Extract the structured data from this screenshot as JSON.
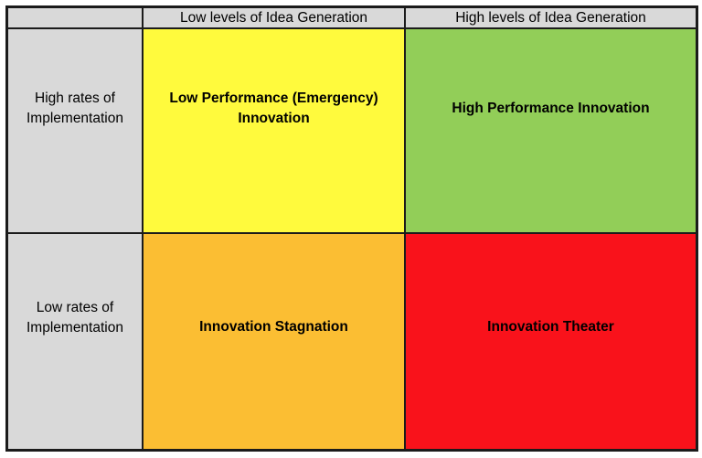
{
  "matrix": {
    "column_headers": [
      {
        "label": "Low levels of Idea Generation"
      },
      {
        "label": "High levels of Idea Generation"
      }
    ],
    "row_headers": [
      {
        "label": "High rates of\nImplementation"
      },
      {
        "label": "Low rates of\nImplementation"
      }
    ],
    "quadrants": [
      {
        "id": "low-performance-emergency-innovation",
        "label": "Low Performance (Emergency)\nInnovation",
        "color": "#fffa3d"
      },
      {
        "id": "high-performance-innovation",
        "label": "High Performance Innovation",
        "color": "#92ce58"
      },
      {
        "id": "innovation-stagnation",
        "label": "Innovation Stagnation",
        "color": "#fbbe33"
      },
      {
        "id": "innovation-theater",
        "label": "Innovation Theater",
        "color": "#f9121b"
      }
    ],
    "colors": {
      "header_bg": "#d9d9d9",
      "border": "#1b1b1b",
      "text": "#000000"
    }
  }
}
